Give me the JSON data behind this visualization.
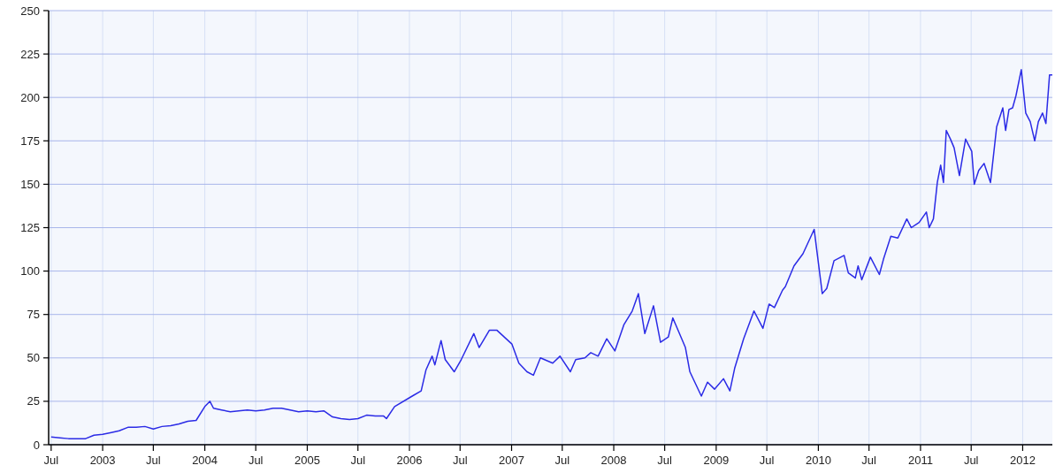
{
  "chart_data": {
    "type": "line",
    "grid": true,
    "marker": "none",
    "line_style": "solid",
    "xlim": [
      "2002-06-22",
      "2012-04-16"
    ],
    "xticks": [
      {
        "value": "2002-07-01",
        "label": "Jul"
      },
      {
        "value": "2003-01-01",
        "label": "2003"
      },
      {
        "value": "2003-07-01",
        "label": "Jul"
      },
      {
        "value": "2004-01-01",
        "label": "2004"
      },
      {
        "value": "2004-07-01",
        "label": "Jul"
      },
      {
        "value": "2005-01-01",
        "label": "2005"
      },
      {
        "value": "2005-07-01",
        "label": "Jul"
      },
      {
        "value": "2006-01-01",
        "label": "2006"
      },
      {
        "value": "2006-07-01",
        "label": "Jul"
      },
      {
        "value": "2007-01-01",
        "label": "2007"
      },
      {
        "value": "2007-07-01",
        "label": "Jul"
      },
      {
        "value": "2008-01-01",
        "label": "2008"
      },
      {
        "value": "2008-07-01",
        "label": "Jul"
      },
      {
        "value": "2009-01-01",
        "label": "2009"
      },
      {
        "value": "2009-07-01",
        "label": "Jul"
      },
      {
        "value": "2010-01-01",
        "label": "2010"
      },
      {
        "value": "2010-07-01",
        "label": "Jul"
      },
      {
        "value": "2011-01-01",
        "label": "2011"
      },
      {
        "value": "2011-07-01",
        "label": "Jul"
      },
      {
        "value": "2012-01-01",
        "label": "2012"
      }
    ],
    "ylim": [
      0,
      250
    ],
    "yticks": [
      0,
      25,
      50,
      75,
      100,
      125,
      150,
      175,
      200,
      225,
      250
    ],
    "series": [
      {
        "color": "#2b2be6",
        "x": [
          "2002-07-01",
          "2002-08-01",
          "2002-09-01",
          "2002-10-01",
          "2002-11-01",
          "2002-12-01",
          "2003-01-01",
          "2003-02-01",
          "2003-03-01",
          "2003-04-01",
          "2003-05-01",
          "2003-06-01",
          "2003-07-01",
          "2003-08-01",
          "2003-09-01",
          "2003-10-01",
          "2003-11-01",
          "2003-12-01",
          "2004-01-01",
          "2004-01-19",
          "2004-02-01",
          "2004-03-01",
          "2004-04-01",
          "2004-05-01",
          "2004-06-01",
          "2004-07-01",
          "2004-08-01",
          "2004-09-01",
          "2004-10-01",
          "2004-11-01",
          "2004-12-01",
          "2005-01-01",
          "2005-02-01",
          "2005-03-01",
          "2005-04-01",
          "2005-05-01",
          "2005-06-01",
          "2005-07-01",
          "2005-08-01",
          "2005-09-01",
          "2005-10-01",
          "2005-10-11",
          "2005-11-09",
          "2006-01-11",
          "2006-02-12",
          "2006-03-01",
          "2006-03-23",
          "2006-04-02",
          "2006-04-24",
          "2006-05-09",
          "2006-06-10",
          "2006-07-05",
          "2006-08-19",
          "2006-09-07",
          "2006-10-14",
          "2006-11-09",
          "2007-01-02",
          "2007-01-27",
          "2007-02-25",
          "2007-03-20",
          "2007-04-14",
          "2007-05-28",
          "2007-06-23",
          "2007-07-30",
          "2007-08-18",
          "2007-09-20",
          "2007-10-11",
          "2007-11-06",
          "2007-12-07",
          "2008-01-05",
          "2008-02-06",
          "2008-03-07",
          "2008-03-29",
          "2008-04-21",
          "2008-05-22",
          "2008-06-16",
          "2008-07-14",
          "2008-07-30",
          "2008-09-13",
          "2008-09-29",
          "2008-11-09",
          "2008-12-01",
          "2008-12-26",
          "2009-01-27",
          "2009-02-19",
          "2009-03-08",
          "2009-04-09",
          "2009-05-16",
          "2009-06-17",
          "2009-07-09",
          "2009-07-28",
          "2009-08-26",
          "2009-09-05",
          "2009-10-06",
          "2009-11-07",
          "2009-12-17",
          "2010-01-15",
          "2010-01-31",
          "2010-02-26",
          "2010-04-03",
          "2010-04-18",
          "2010-05-13",
          "2010-05-23",
          "2010-06-05",
          "2010-07-06",
          "2010-08-07",
          "2010-08-22",
          "2010-09-17",
          "2010-10-12",
          "2010-11-13",
          "2010-11-29",
          "2010-12-27",
          "2011-01-22",
          "2011-02-01",
          "2011-02-16",
          "2011-03-02",
          "2011-03-14",
          "2011-03-24",
          "2011-04-03",
          "2011-04-18",
          "2011-05-01",
          "2011-05-20",
          "2011-06-11",
          "2011-07-03",
          "2011-07-12",
          "2011-07-28",
          "2011-08-16",
          "2011-09-08",
          "2011-09-30",
          "2011-10-22",
          "2011-11-01",
          "2011-11-13",
          "2011-11-26",
          "2011-12-08",
          "2011-12-27",
          "2012-01-12",
          "2012-01-28",
          "2012-02-13",
          "2012-02-26",
          "2012-03-12",
          "2012-03-24",
          "2012-04-06",
          "2012-04-16"
        ],
        "values": [
          4.5,
          4,
          3.5,
          3.5,
          3.5,
          5.5,
          6,
          7,
          8,
          10,
          10,
          10.5,
          9,
          10.5,
          11,
          12,
          13.5,
          14,
          22,
          25,
          21,
          20,
          19,
          19.5,
          20,
          19.5,
          20,
          21,
          21,
          20,
          19,
          19.5,
          19,
          19.5,
          16,
          15,
          14.5,
          15,
          17,
          16.5,
          16.5,
          15,
          22,
          28,
          31,
          43,
          51,
          46,
          60,
          49,
          42,
          49,
          64,
          56,
          66,
          66,
          58,
          47,
          42,
          40,
          50,
          47,
          51,
          42,
          49,
          50,
          53,
          51,
          61,
          54,
          69,
          77,
          87,
          64,
          80,
          59,
          62,
          73,
          56,
          42,
          28,
          36,
          32,
          38,
          31,
          44,
          61,
          77,
          67,
          81,
          79,
          89,
          91,
          103,
          110,
          124,
          87,
          90,
          106,
          109,
          99,
          96,
          103,
          95,
          108,
          98,
          107,
          120,
          119,
          130,
          125,
          128,
          134,
          125,
          130,
          151,
          161,
          151,
          181,
          176,
          171,
          155,
          176,
          169,
          150,
          158,
          162,
          151,
          183,
          194,
          181,
          193,
          194,
          201,
          216,
          191,
          186,
          175,
          186,
          191,
          185,
          213,
          213
        ]
      }
    ]
  }
}
